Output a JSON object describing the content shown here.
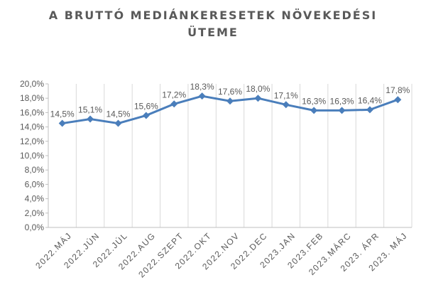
{
  "chart_data": {
    "type": "line",
    "title_line1": "A BRUTTÓ MEDIÁNKERESETEK NÖVEKEDÉSI",
    "title_line2": "ÜTEME",
    "categories": [
      "2022.MÁJ",
      "2022.JÚN",
      "2022.JÚL",
      "2022.AUG",
      "2022.SZEPT",
      "2022.OKT",
      "2022.NOV",
      "2022.DEC",
      "2023.JAN",
      "2023.FEB",
      "2023.MÁRC",
      "2023. ÁPR",
      "2023. MÁJ"
    ],
    "values": [
      14.5,
      15.1,
      14.5,
      15.6,
      17.2,
      18.3,
      17.6,
      18.0,
      17.1,
      16.3,
      16.3,
      16.4,
      17.8
    ],
    "data_labels": [
      "14,5%",
      "15,1%",
      "14,5%",
      "15,6%",
      "17,2%",
      "18,3%",
      "17,6%",
      "18,0%",
      "17,1%",
      "16,3%",
      "16,3%",
      "16,4%",
      "17,8%"
    ],
    "ylim": [
      0,
      20
    ],
    "yticks": [
      "0,0%",
      "2,0%",
      "4,0%",
      "6,0%",
      "8,0%",
      "10,0%",
      "12,0%",
      "14,0%",
      "16,0%",
      "18,0%",
      "20,0%"
    ],
    "xlabel": "",
    "ylabel": "",
    "grid": "vertical",
    "legend": "none",
    "line_color": "#4a7ebb",
    "grid_color": "#d9d9d9",
    "axis_color": "#bfbfbf",
    "text_color": "#595959"
  }
}
